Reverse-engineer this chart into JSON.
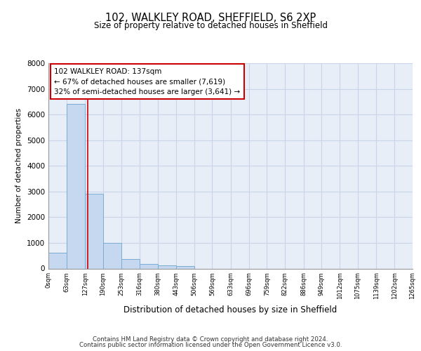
{
  "title_line1": "102, WALKLEY ROAD, SHEFFIELD, S6 2XP",
  "title_line2": "Size of property relative to detached houses in Sheffield",
  "xlabel": "Distribution of detached houses by size in Sheffield",
  "ylabel": "Number of detached properties",
  "footer_line1": "Contains HM Land Registry data © Crown copyright and database right 2024.",
  "footer_line2": "Contains public sector information licensed under the Open Government Licence v3.0.",
  "annotation_line1": "102 WALKLEY ROAD: 137sqm",
  "annotation_line2": "← 67% of detached houses are smaller (7,619)",
  "annotation_line3": "32% of semi-detached houses are larger (3,641) →",
  "bar_edges": [
    0,
    63,
    127,
    190,
    253,
    316,
    380,
    443,
    506,
    569,
    633,
    696,
    759,
    822,
    886,
    949,
    1012,
    1075,
    1139,
    1202,
    1265
  ],
  "bar_heights": [
    620,
    6420,
    2920,
    1000,
    380,
    175,
    120,
    85,
    0,
    0,
    0,
    0,
    0,
    0,
    0,
    0,
    0,
    0,
    0,
    0
  ],
  "bar_color": "#c5d8ef",
  "bar_edge_color": "#7aadd4",
  "red_line_x": 137,
  "ylim": [
    0,
    8000
  ],
  "yticks": [
    0,
    1000,
    2000,
    3000,
    4000,
    5000,
    6000,
    7000,
    8000
  ],
  "xtick_labels": [
    "0sqm",
    "63sqm",
    "127sqm",
    "190sqm",
    "253sqm",
    "316sqm",
    "380sqm",
    "443sqm",
    "506sqm",
    "569sqm",
    "633sqm",
    "696sqm",
    "759sqm",
    "822sqm",
    "886sqm",
    "949sqm",
    "1012sqm",
    "1075sqm",
    "1139sqm",
    "1202sqm",
    "1265sqm"
  ],
  "grid_color": "#c8d4e8",
  "background_color": "#e8eef8",
  "annotation_box_facecolor": "#ffffff",
  "annotation_box_edgecolor": "#cc0000",
  "red_line_color": "#cc0000",
  "fig_background": "#ffffff"
}
